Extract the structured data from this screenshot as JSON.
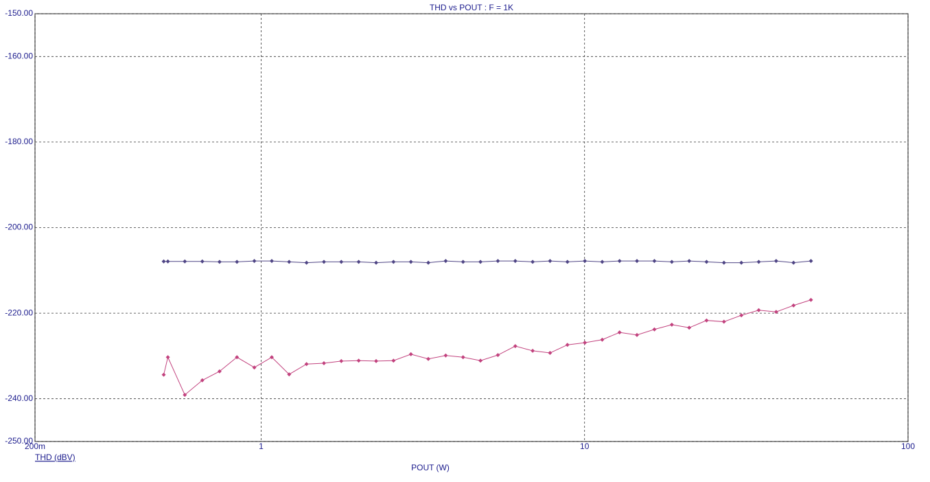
{
  "chart_data": {
    "type": "line",
    "title": "THD vs POUT : F = 1K",
    "xlabel": "POUT (W)",
    "ylabel": "THD (dBV)",
    "xscale": "log",
    "grid": true,
    "xlim": [
      0.2,
      100
    ],
    "xticks": [
      {
        "value": 0.2,
        "label": "200m"
      },
      1,
      10,
      100
    ],
    "ylim": [
      -250,
      -150
    ],
    "yticks": [
      {
        "value": -150,
        "label": "-150.00"
      },
      {
        "value": -160,
        "label": "-160.00"
      },
      {
        "value": -180,
        "label": "-180.00"
      },
      {
        "value": -200,
        "label": "-200.00"
      },
      {
        "value": -220,
        "label": "-220.00"
      },
      {
        "value": -240,
        "label": "-240.00"
      },
      {
        "value": -250,
        "label": "-250.00"
      }
    ],
    "x": [
      0.5,
      0.515,
      0.581,
      0.658,
      0.744,
      0.842,
      0.953,
      1.079,
      1.221,
      1.382,
      1.564,
      1.77,
      2.003,
      2.268,
      2.566,
      2.905,
      3.288,
      3.721,
      4.211,
      4.766,
      5.395,
      6.106,
      6.911,
      7.821,
      8.852,
      10.02,
      11.34,
      12.83,
      14.52,
      16.44,
      18.61,
      21.06,
      23.83,
      26.97,
      30.53,
      34.55,
      39.11,
      44.26,
      50.1
    ],
    "series": [
      {
        "color": "#4f4585",
        "values": [
          -207.9,
          -207.9,
          -207.9,
          -207.9,
          -208.0,
          -208.0,
          -207.8,
          -207.8,
          -208.0,
          -208.2,
          -208.0,
          -208.0,
          -208.0,
          -208.2,
          -208.0,
          -208.0,
          -208.2,
          -207.8,
          -208.0,
          -208.0,
          -207.8,
          -207.8,
          -208.0,
          -207.8,
          -208.0,
          -207.8,
          -208.0,
          -207.8,
          -207.8,
          -207.8,
          -208.0,
          -207.8,
          -208.0,
          -208.2,
          -208.2,
          -208.0,
          -207.8,
          -208.2,
          -207.8
        ]
      },
      {
        "color": "#c2427e",
        "values": [
          -234.4,
          -230.3,
          -239.1,
          -235.7,
          -233.6,
          -230.3,
          -232.7,
          -230.3,
          -234.3,
          -231.9,
          -231.7,
          -231.2,
          -231.1,
          -231.2,
          -231.1,
          -229.6,
          -230.7,
          -229.9,
          -230.3,
          -231.1,
          -229.8,
          -227.7,
          -228.8,
          -229.3,
          -227.4,
          -226.9,
          -226.2,
          -224.5,
          -225.1,
          -223.8,
          -222.7,
          -223.4,
          -221.7,
          -222.0,
          -220.5,
          -219.3,
          -219.7,
          -218.2,
          -216.9
        ]
      }
    ]
  }
}
